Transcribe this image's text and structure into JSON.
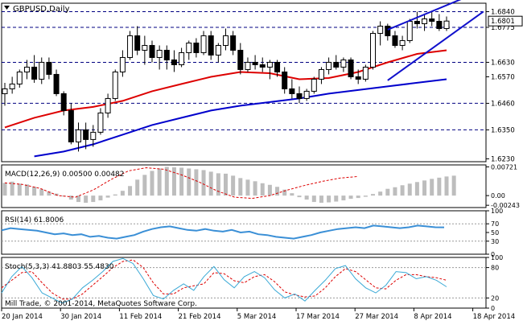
{
  "chart_data": {
    "type": "candlestick",
    "title": "GBPUSD,Daily",
    "colors": {
      "bull": "#ffffff",
      "bear": "#000000",
      "ma_fast": "#dd0000",
      "ma_slow": "#0000cc",
      "channel": "#1010cc",
      "macd_hist": "#bdbdbd",
      "macd_signal": "#dd0000",
      "rsi": "#3a8fd6",
      "stoch_main": "#3aa9d6",
      "stoch_signal": "#dd0000",
      "level_line": "#000080"
    },
    "price_axis": {
      "ylim": [
        1.6218,
        1.6875
      ],
      "ticks": [
        "1.6840",
        "1.6775",
        "1.6630",
        "1.6570",
        "1.6460",
        "1.6350",
        "1.6230"
      ],
      "level_lines": [
        1.684,
        1.6775,
        1.663,
        1.646,
        1.635
      ],
      "current_price": "1.6801"
    },
    "x_dates": [
      "20 Jan 2014",
      "30 Jan 2014",
      "11 Feb 2014",
      "21 Feb 2014",
      "5 Mar 2014",
      "17 Mar 2014",
      "27 Mar 2014",
      "8 Apr 2014",
      "18 Apr 2014"
    ],
    "x_date_index": [
      0,
      8,
      16,
      24,
      32,
      40,
      48,
      56,
      64
    ],
    "candles": [
      [
        1.65,
        1.6545,
        1.645,
        1.652
      ],
      [
        1.652,
        1.657,
        1.65,
        1.654
      ],
      [
        1.654,
        1.66,
        1.6525,
        1.659
      ],
      [
        1.659,
        1.664,
        1.656,
        1.661
      ],
      [
        1.661,
        1.666,
        1.6545,
        1.656
      ],
      [
        1.656,
        1.665,
        1.654,
        1.663
      ],
      [
        1.663,
        1.665,
        1.656,
        1.658
      ],
      [
        1.658,
        1.66,
        1.649,
        1.65
      ],
      [
        1.65,
        1.651,
        1.641,
        1.643
      ],
      [
        1.643,
        1.646,
        1.629,
        1.63
      ],
      [
        1.63,
        1.638,
        1.626,
        1.635
      ],
      [
        1.635,
        1.638,
        1.627,
        1.631
      ],
      [
        1.631,
        1.637,
        1.628,
        1.634
      ],
      [
        1.634,
        1.644,
        1.633,
        1.642
      ],
      [
        1.642,
        1.65,
        1.64,
        1.648
      ],
      [
        1.648,
        1.66,
        1.647,
        1.659
      ],
      [
        1.659,
        1.668,
        1.657,
        1.665
      ],
      [
        1.665,
        1.676,
        1.664,
        1.674
      ],
      [
        1.674,
        1.678,
        1.666,
        1.668
      ],
      [
        1.668,
        1.674,
        1.662,
        1.67
      ],
      [
        1.67,
        1.672,
        1.663,
        1.665
      ],
      [
        1.665,
        1.67,
        1.66,
        1.668
      ],
      [
        1.668,
        1.67,
        1.66,
        1.664
      ],
      [
        1.664,
        1.668,
        1.659,
        1.662
      ],
      [
        1.662,
        1.669,
        1.661,
        1.667
      ],
      [
        1.667,
        1.672,
        1.664,
        1.671
      ],
      [
        1.671,
        1.673,
        1.665,
        1.667
      ],
      [
        1.667,
        1.676,
        1.666,
        1.674
      ],
      [
        1.674,
        1.676,
        1.664,
        1.666
      ],
      [
        1.666,
        1.671,
        1.663,
        1.67
      ],
      [
        1.67,
        1.677,
        1.668,
        1.674
      ],
      [
        1.674,
        1.676,
        1.666,
        1.668
      ],
      [
        1.668,
        1.671,
        1.658,
        1.66
      ],
      [
        1.66,
        1.665,
        1.659,
        1.663
      ],
      [
        1.663,
        1.666,
        1.66,
        1.662
      ],
      [
        1.662,
        1.665,
        1.659,
        1.661
      ],
      [
        1.661,
        1.664,
        1.656,
        1.663
      ],
      [
        1.663,
        1.664,
        1.657,
        1.659
      ],
      [
        1.659,
        1.661,
        1.65,
        1.652
      ],
      [
        1.652,
        1.656,
        1.648,
        1.65
      ],
      [
        1.65,
        1.653,
        1.646,
        1.648
      ],
      [
        1.648,
        1.652,
        1.647,
        1.651
      ],
      [
        1.651,
        1.657,
        1.65,
        1.656
      ],
      [
        1.656,
        1.661,
        1.654,
        1.66
      ],
      [
        1.66,
        1.665,
        1.658,
        1.663
      ],
      [
        1.663,
        1.666,
        1.66,
        1.661
      ],
      [
        1.661,
        1.665,
        1.659,
        1.664
      ],
      [
        1.664,
        1.665,
        1.656,
        1.657
      ],
      [
        1.657,
        1.66,
        1.654,
        1.656
      ],
      [
        1.656,
        1.662,
        1.655,
        1.661
      ],
      [
        1.661,
        1.676,
        1.66,
        1.675
      ],
      [
        1.675,
        1.68,
        1.67,
        1.678
      ],
      [
        1.678,
        1.679,
        1.672,
        1.674
      ],
      [
        1.674,
        1.676,
        1.669,
        1.67
      ],
      [
        1.67,
        1.674,
        1.668,
        1.672
      ],
      [
        1.672,
        1.681,
        1.671,
        1.68
      ],
      [
        1.68,
        1.684,
        1.677,
        1.679
      ],
      [
        1.679,
        1.683,
        1.676,
        1.681
      ],
      [
        1.681,
        1.684,
        1.678,
        1.68
      ],
      [
        1.68,
        1.683,
        1.676,
        1.677
      ],
      [
        1.677,
        1.682,
        1.676,
        1.6801
      ]
    ],
    "ma_fast": [
      [
        0,
        1.636
      ],
      [
        4,
        1.64
      ],
      [
        8,
        1.643
      ],
      [
        12,
        1.6445
      ],
      [
        16,
        1.647
      ],
      [
        20,
        1.651
      ],
      [
        24,
        1.654
      ],
      [
        28,
        1.657
      ],
      [
        32,
        1.659
      ],
      [
        36,
        1.6585
      ],
      [
        40,
        1.656
      ],
      [
        44,
        1.6565
      ],
      [
        48,
        1.659
      ],
      [
        52,
        1.663
      ],
      [
        56,
        1.6665
      ],
      [
        60,
        1.668
      ]
    ],
    "ma_slow": [
      [
        4,
        1.624
      ],
      [
        8,
        1.626
      ],
      [
        12,
        1.629
      ],
      [
        16,
        1.633
      ],
      [
        20,
        1.637
      ],
      [
        24,
        1.64
      ],
      [
        28,
        1.643
      ],
      [
        32,
        1.645
      ],
      [
        36,
        1.6465
      ],
      [
        40,
        1.648
      ],
      [
        44,
        1.65
      ],
      [
        48,
        1.6515
      ],
      [
        52,
        1.653
      ],
      [
        56,
        1.6545
      ],
      [
        60,
        1.656
      ]
    ],
    "channel_lines": [
      {
        "from": [
          52,
          1.6765
        ],
        "to": [
          65,
          1.693
        ]
      },
      {
        "from": [
          52,
          1.6555
        ],
        "to": [
          65,
          1.684
        ]
      }
    ],
    "macd": {
      "label": "MACD(12,26,9) 0.00500 0.00482",
      "ylim": [
        -0.003,
        0.0077
      ],
      "ticks": [
        "0.00721",
        "0.00",
        "-0.00243"
      ],
      "histogram": [
        0.0032,
        0.0035,
        0.003,
        0.0028,
        0.0022,
        0.0016,
        0.001,
        0.0005,
        -0.0002,
        -0.001,
        -0.0016,
        -0.0018,
        -0.0016,
        -0.0012,
        -0.0005,
        0.0003,
        0.0012,
        0.0024,
        0.004,
        0.0052,
        0.0062,
        0.0068,
        0.0072,
        0.0071,
        0.007,
        0.0068,
        0.0066,
        0.0064,
        0.006,
        0.0056,
        0.0055,
        0.005,
        0.0044,
        0.004,
        0.0036,
        0.0031,
        0.0027,
        0.0022,
        0.0015,
        0.0006,
        -0.0004,
        -0.001,
        -0.0016,
        -0.0018,
        -0.0017,
        -0.0015,
        -0.0012,
        -0.0008,
        -0.0006,
        -0.0003,
        0.0004,
        0.001,
        0.0017,
        0.0021,
        0.0026,
        0.003,
        0.0034,
        0.0038,
        0.0042,
        0.0045,
        0.0048,
        0.005
      ],
      "signal": [
        [
          0,
          0.0032
        ],
        [
          4,
          0.0028
        ],
        [
          8,
          0.0018
        ],
        [
          12,
          0.0
        ],
        [
          16,
          -0.0004
        ],
        [
          20,
          0.0014
        ],
        [
          24,
          0.004
        ],
        [
          28,
          0.0062
        ],
        [
          32,
          0.007
        ],
        [
          36,
          0.0066
        ],
        [
          40,
          0.0052
        ],
        [
          44,
          0.0034
        ],
        [
          48,
          0.0012
        ],
        [
          52,
          -0.0004
        ],
        [
          56,
          -0.0007
        ],
        [
          60,
          0.0
        ],
        [
          64,
          0.0014
        ],
        [
          68,
          0.0026
        ],
        [
          72,
          0.0036
        ],
        [
          76,
          0.0044
        ],
        [
          80,
          0.0048
        ]
      ]
    },
    "rsi": {
      "label": "RSI(14) 61.8006",
      "ylim": [
        0,
        100
      ],
      "ticks": [
        "100",
        "70",
        "50",
        "30",
        "0"
      ],
      "levels": [
        70,
        30
      ],
      "values": [
        [
          0,
          55
        ],
        [
          1,
          60
        ],
        [
          2,
          58
        ],
        [
          3,
          56
        ],
        [
          4,
          54
        ],
        [
          5,
          50
        ],
        [
          6,
          46
        ],
        [
          7,
          48
        ],
        [
          8,
          44
        ],
        [
          9,
          46
        ],
        [
          10,
          40
        ],
        [
          11,
          42
        ],
        [
          12,
          38
        ],
        [
          13,
          36
        ],
        [
          14,
          40
        ],
        [
          15,
          44
        ],
        [
          16,
          52
        ],
        [
          17,
          58
        ],
        [
          18,
          62
        ],
        [
          19,
          64
        ],
        [
          20,
          60
        ],
        [
          21,
          56
        ],
        [
          22,
          54
        ],
        [
          23,
          58
        ],
        [
          24,
          54
        ],
        [
          25,
          52
        ],
        [
          26,
          56
        ],
        [
          27,
          50
        ],
        [
          28,
          52
        ],
        [
          29,
          46
        ],
        [
          30,
          44
        ],
        [
          31,
          40
        ],
        [
          32,
          38
        ],
        [
          33,
          36
        ],
        [
          34,
          40
        ],
        [
          35,
          44
        ],
        [
          36,
          50
        ],
        [
          37,
          54
        ],
        [
          38,
          58
        ],
        [
          39,
          60
        ],
        [
          40,
          62
        ],
        [
          41,
          60
        ],
        [
          42,
          66
        ],
        [
          43,
          64
        ],
        [
          44,
          62
        ],
        [
          45,
          60
        ],
        [
          46,
          62
        ],
        [
          47,
          66
        ],
        [
          48,
          64
        ],
        [
          49,
          62
        ],
        [
          50,
          61.8
        ]
      ]
    },
    "stoch": {
      "label": "Stoch(5,3,3) 41.8803 55.4830",
      "ylim": [
        0,
        100
      ],
      "ticks": [
        "100",
        "80",
        "20",
        "0"
      ],
      "levels": [
        80,
        20
      ],
      "main": [
        [
          0,
          30
        ],
        [
          2,
          62
        ],
        [
          4,
          82
        ],
        [
          6,
          60
        ],
        [
          8,
          30
        ],
        [
          10,
          20
        ],
        [
          12,
          10
        ],
        [
          14,
          18
        ],
        [
          16,
          40
        ],
        [
          18,
          55
        ],
        [
          20,
          72
        ],
        [
          22,
          92
        ],
        [
          24,
          98
        ],
        [
          26,
          88
        ],
        [
          28,
          58
        ],
        [
          30,
          25
        ],
        [
          32,
          18
        ],
        [
          34,
          35
        ],
        [
          36,
          48
        ],
        [
          38,
          35
        ],
        [
          40,
          62
        ],
        [
          42,
          82
        ],
        [
          44,
          56
        ],
        [
          46,
          40
        ],
        [
          48,
          62
        ],
        [
          50,
          72
        ],
        [
          52,
          60
        ],
        [
          54,
          36
        ],
        [
          56,
          20
        ],
        [
          58,
          28
        ],
        [
          60,
          14
        ],
        [
          62,
          35
        ],
        [
          64,
          55
        ],
        [
          66,
          78
        ],
        [
          68,
          84
        ],
        [
          70,
          58
        ],
        [
          72,
          40
        ],
        [
          74,
          30
        ],
        [
          76,
          45
        ],
        [
          78,
          72
        ],
        [
          80,
          70
        ],
        [
          82,
          58
        ],
        [
          84,
          62
        ],
        [
          86,
          55
        ],
        [
          88,
          42
        ]
      ],
      "signal": [
        [
          0,
          40
        ],
        [
          2,
          55
        ],
        [
          4,
          70
        ],
        [
          6,
          72
        ],
        [
          8,
          50
        ],
        [
          10,
          30
        ],
        [
          12,
          18
        ],
        [
          14,
          18
        ],
        [
          16,
          28
        ],
        [
          18,
          45
        ],
        [
          20,
          62
        ],
        [
          22,
          80
        ],
        [
          24,
          92
        ],
        [
          26,
          95
        ],
        [
          28,
          80
        ],
        [
          30,
          50
        ],
        [
          32,
          28
        ],
        [
          34,
          28
        ],
        [
          36,
          40
        ],
        [
          38,
          44
        ],
        [
          40,
          48
        ],
        [
          42,
          70
        ],
        [
          44,
          68
        ],
        [
          46,
          54
        ],
        [
          48,
          50
        ],
        [
          50,
          62
        ],
        [
          52,
          66
        ],
        [
          54,
          52
        ],
        [
          56,
          32
        ],
        [
          58,
          26
        ],
        [
          60,
          22
        ],
        [
          62,
          24
        ],
        [
          64,
          40
        ],
        [
          66,
          62
        ],
        [
          68,
          78
        ],
        [
          70,
          72
        ],
        [
          72,
          56
        ],
        [
          74,
          40
        ],
        [
          76,
          38
        ],
        [
          78,
          55
        ],
        [
          80,
          66
        ],
        [
          82,
          66
        ],
        [
          84,
          62
        ],
        [
          86,
          60
        ],
        [
          88,
          55
        ]
      ],
      "footer": "Mill Trade, © 2001-2014, MetaQuotes Software Corp."
    }
  }
}
